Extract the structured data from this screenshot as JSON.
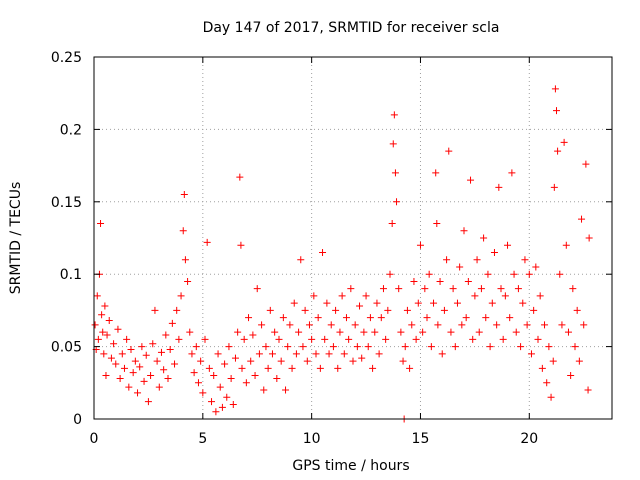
{
  "chart_data": {
    "type": "scatter",
    "title": "Day 147 of 2017, SRMTID for receiver scla",
    "xlabel": "GPS time / hours",
    "ylabel": "SRMTID / TECUs",
    "xlim": [
      0,
      23.8
    ],
    "ylim": [
      0,
      0.25
    ],
    "xticks": [
      0,
      5,
      10,
      15,
      20
    ],
    "xtick_labels": [
      "0",
      "5",
      "10",
      "15",
      "20"
    ],
    "yticks": [
      0,
      0.05,
      0.1,
      0.15,
      0.2,
      0.25
    ],
    "ytick_labels": [
      "0",
      "0.05",
      "0.1",
      "0.15",
      "0.2",
      "0.25"
    ],
    "grid": true,
    "marker": "+",
    "color": "#ff0000",
    "series": [
      {
        "name": "SRMTID",
        "points": [
          [
            0.05,
            0.065
          ],
          [
            0.1,
            0.048
          ],
          [
            0.15,
            0.085
          ],
          [
            0.2,
            0.055
          ],
          [
            0.25,
            0.1
          ],
          [
            0.3,
            0.135
          ],
          [
            0.35,
            0.072
          ],
          [
            0.4,
            0.06
          ],
          [
            0.45,
            0.045
          ],
          [
            0.5,
            0.078
          ],
          [
            0.55,
            0.03
          ],
          [
            0.6,
            0.058
          ],
          [
            0.7,
            0.068
          ],
          [
            0.8,
            0.042
          ],
          [
            0.9,
            0.052
          ],
          [
            1.0,
            0.038
          ],
          [
            1.1,
            0.062
          ],
          [
            1.2,
            0.028
          ],
          [
            1.3,
            0.045
          ],
          [
            1.4,
            0.035
          ],
          [
            1.5,
            0.055
          ],
          [
            1.6,
            0.022
          ],
          [
            1.7,
            0.048
          ],
          [
            1.8,
            0.032
          ],
          [
            1.9,
            0.04
          ],
          [
            2.0,
            0.018
          ],
          [
            2.1,
            0.036
          ],
          [
            2.2,
            0.05
          ],
          [
            2.3,
            0.026
          ],
          [
            2.4,
            0.044
          ],
          [
            2.5,
            0.012
          ],
          [
            2.6,
            0.03
          ],
          [
            2.7,
            0.052
          ],
          [
            2.8,
            0.075
          ],
          [
            2.9,
            0.04
          ],
          [
            3.0,
            0.022
          ],
          [
            3.1,
            0.046
          ],
          [
            3.2,
            0.034
          ],
          [
            3.3,
            0.058
          ],
          [
            3.4,
            0.028
          ],
          [
            3.5,
            0.048
          ],
          [
            3.6,
            0.066
          ],
          [
            3.7,
            0.038
          ],
          [
            3.8,
            0.075
          ],
          [
            3.9,
            0.055
          ],
          [
            4.0,
            0.085
          ],
          [
            4.1,
            0.13
          ],
          [
            4.15,
            0.155
          ],
          [
            4.2,
            0.11
          ],
          [
            4.3,
            0.095
          ],
          [
            4.4,
            0.06
          ],
          [
            4.5,
            0.045
          ],
          [
            4.6,
            0.032
          ],
          [
            4.7,
            0.05
          ],
          [
            4.8,
            0.025
          ],
          [
            4.9,
            0.04
          ],
          [
            5.0,
            0.018
          ],
          [
            5.1,
            0.055
          ],
          [
            5.2,
            0.122
          ],
          [
            5.3,
            0.035
          ],
          [
            5.4,
            0.012
          ],
          [
            5.5,
            0.03
          ],
          [
            5.6,
            0.005
          ],
          [
            5.7,
            0.045
          ],
          [
            5.8,
            0.022
          ],
          [
            5.9,
            0.008
          ],
          [
            6.0,
            0.038
          ],
          [
            6.1,
            0.015
          ],
          [
            6.2,
            0.05
          ],
          [
            6.3,
            0.028
          ],
          [
            6.4,
            0.01
          ],
          [
            6.5,
            0.042
          ],
          [
            6.6,
            0.06
          ],
          [
            6.7,
            0.167
          ],
          [
            6.75,
            0.12
          ],
          [
            6.8,
            0.035
          ],
          [
            6.9,
            0.055
          ],
          [
            7.0,
            0.025
          ],
          [
            7.1,
            0.07
          ],
          [
            7.2,
            0.04
          ],
          [
            7.3,
            0.058
          ],
          [
            7.4,
            0.03
          ],
          [
            7.5,
            0.09
          ],
          [
            7.6,
            0.045
          ],
          [
            7.7,
            0.065
          ],
          [
            7.8,
            0.02
          ],
          [
            7.9,
            0.05
          ],
          [
            8.0,
            0.035
          ],
          [
            8.1,
            0.075
          ],
          [
            8.2,
            0.045
          ],
          [
            8.3,
            0.06
          ],
          [
            8.4,
            0.028
          ],
          [
            8.5,
            0.055
          ],
          [
            8.6,
            0.04
          ],
          [
            8.7,
            0.07
          ],
          [
            8.8,
            0.02
          ],
          [
            8.9,
            0.05
          ],
          [
            9.0,
            0.065
          ],
          [
            9.1,
            0.035
          ],
          [
            9.2,
            0.08
          ],
          [
            9.3,
            0.045
          ],
          [
            9.4,
            0.06
          ],
          [
            9.5,
            0.11
          ],
          [
            9.6,
            0.05
          ],
          [
            9.7,
            0.075
          ],
          [
            9.8,
            0.04
          ],
          [
            9.9,
            0.065
          ],
          [
            10.0,
            0.055
          ],
          [
            10.1,
            0.085
          ],
          [
            10.2,
            0.045
          ],
          [
            10.3,
            0.07
          ],
          [
            10.4,
            0.035
          ],
          [
            10.5,
            0.115
          ],
          [
            10.6,
            0.055
          ],
          [
            10.7,
            0.08
          ],
          [
            10.8,
            0.045
          ],
          [
            10.9,
            0.065
          ],
          [
            11.0,
            0.05
          ],
          [
            11.1,
            0.075
          ],
          [
            11.2,
            0.035
          ],
          [
            11.3,
            0.06
          ],
          [
            11.4,
            0.085
          ],
          [
            11.5,
            0.045
          ],
          [
            11.6,
            0.07
          ],
          [
            11.7,
            0.055
          ],
          [
            11.8,
            0.09
          ],
          [
            11.9,
            0.04
          ],
          [
            12.0,
            0.065
          ],
          [
            12.1,
            0.05
          ],
          [
            12.2,
            0.078
          ],
          [
            12.3,
            0.042
          ],
          [
            12.4,
            0.06
          ],
          [
            12.5,
            0.085
          ],
          [
            12.6,
            0.05
          ],
          [
            12.7,
            0.07
          ],
          [
            12.8,
            0.035
          ],
          [
            12.9,
            0.06
          ],
          [
            13.0,
            0.08
          ],
          [
            13.1,
            0.045
          ],
          [
            13.2,
            0.07
          ],
          [
            13.3,
            0.09
          ],
          [
            13.4,
            0.055
          ],
          [
            13.5,
            0.075
          ],
          [
            13.6,
            0.1
          ],
          [
            13.7,
            0.135
          ],
          [
            13.75,
            0.19
          ],
          [
            13.8,
            0.21
          ],
          [
            13.85,
            0.17
          ],
          [
            13.9,
            0.15
          ],
          [
            14.0,
            0.09
          ],
          [
            14.1,
            0.06
          ],
          [
            14.2,
            0.04
          ],
          [
            14.25,
            0.0
          ],
          [
            14.3,
            0.05
          ],
          [
            14.4,
            0.075
          ],
          [
            14.5,
            0.035
          ],
          [
            14.6,
            0.065
          ],
          [
            14.7,
            0.095
          ],
          [
            14.8,
            0.055
          ],
          [
            14.9,
            0.08
          ],
          [
            15.0,
            0.12
          ],
          [
            15.1,
            0.06
          ],
          [
            15.2,
            0.09
          ],
          [
            15.3,
            0.07
          ],
          [
            15.4,
            0.1
          ],
          [
            15.5,
            0.05
          ],
          [
            15.6,
            0.08
          ],
          [
            15.7,
            0.17
          ],
          [
            15.75,
            0.135
          ],
          [
            15.8,
            0.065
          ],
          [
            15.9,
            0.095
          ],
          [
            16.0,
            0.045
          ],
          [
            16.1,
            0.075
          ],
          [
            16.2,
            0.11
          ],
          [
            16.3,
            0.185
          ],
          [
            16.4,
            0.06
          ],
          [
            16.5,
            0.09
          ],
          [
            16.6,
            0.05
          ],
          [
            16.7,
            0.08
          ],
          [
            16.8,
            0.105
          ],
          [
            16.9,
            0.065
          ],
          [
            17.0,
            0.13
          ],
          [
            17.1,
            0.07
          ],
          [
            17.2,
            0.095
          ],
          [
            17.3,
            0.165
          ],
          [
            17.4,
            0.055
          ],
          [
            17.5,
            0.085
          ],
          [
            17.6,
            0.11
          ],
          [
            17.7,
            0.06
          ],
          [
            17.8,
            0.09
          ],
          [
            17.9,
            0.125
          ],
          [
            18.0,
            0.07
          ],
          [
            18.1,
            0.1
          ],
          [
            18.2,
            0.05
          ],
          [
            18.3,
            0.08
          ],
          [
            18.4,
            0.115
          ],
          [
            18.5,
            0.065
          ],
          [
            18.6,
            0.16
          ],
          [
            18.7,
            0.09
          ],
          [
            18.8,
            0.055
          ],
          [
            18.9,
            0.085
          ],
          [
            19.0,
            0.12
          ],
          [
            19.1,
            0.07
          ],
          [
            19.2,
            0.17
          ],
          [
            19.3,
            0.1
          ],
          [
            19.4,
            0.06
          ],
          [
            19.5,
            0.09
          ],
          [
            19.6,
            0.05
          ],
          [
            19.7,
            0.08
          ],
          [
            19.8,
            0.11
          ],
          [
            19.9,
            0.065
          ],
          [
            20.0,
            0.1
          ],
          [
            20.1,
            0.045
          ],
          [
            20.2,
            0.075
          ],
          [
            20.3,
            0.105
          ],
          [
            20.4,
            0.055
          ],
          [
            20.5,
            0.085
          ],
          [
            20.6,
            0.035
          ],
          [
            20.7,
            0.065
          ],
          [
            20.8,
            0.025
          ],
          [
            20.9,
            0.05
          ],
          [
            21.0,
            0.015
          ],
          [
            21.1,
            0.04
          ],
          [
            21.15,
            0.16
          ],
          [
            21.2,
            0.228
          ],
          [
            21.25,
            0.213
          ],
          [
            21.3,
            0.185
          ],
          [
            21.4,
            0.1
          ],
          [
            21.5,
            0.065
          ],
          [
            21.6,
            0.191
          ],
          [
            21.7,
            0.12
          ],
          [
            21.8,
            0.06
          ],
          [
            21.9,
            0.03
          ],
          [
            22.0,
            0.09
          ],
          [
            22.1,
            0.05
          ],
          [
            22.2,
            0.075
          ],
          [
            22.3,
            0.04
          ],
          [
            22.4,
            0.138
          ],
          [
            22.5,
            0.065
          ],
          [
            22.6,
            0.176
          ],
          [
            22.7,
            0.02
          ],
          [
            22.75,
            0.125
          ]
        ]
      }
    ]
  }
}
